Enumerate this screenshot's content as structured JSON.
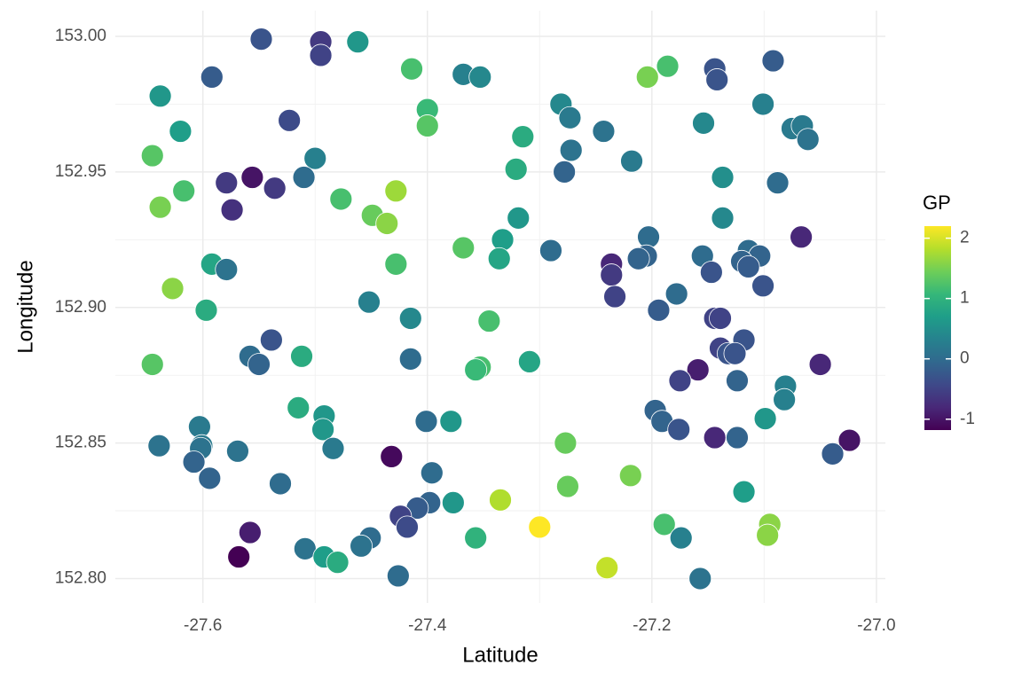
{
  "chart_data": {
    "type": "scatter",
    "x_label": "Latitude",
    "y_label": "Longitude",
    "xlim": [
      -27.678,
      -26.992
    ],
    "ylim": [
      152.791,
      153.0095
    ],
    "xticks": [
      -27.6,
      -27.4,
      -27.2,
      {
        "value": -27,
        "label": "-27.0"
      }
    ],
    "yticks": [
      {
        "value": 152.8,
        "label": "152.80"
      },
      152.85,
      {
        "value": 152.9,
        "label": "152.90"
      },
      152.95,
      {
        "value": 153,
        "label": "153.00"
      }
    ],
    "xminorticks": [
      -27.5,
      -27.3,
      -27.1
    ],
    "yminorticks": [
      152.825,
      152.875,
      152.925,
      152.975
    ],
    "grid": true,
    "colorbar": {
      "title": "GP",
      "lim": [
        -1.18,
        2.2
      ],
      "ticks": [
        -1,
        0,
        1,
        2
      ],
      "colorscale": [
        "#440154",
        "#482878",
        "#3e4989",
        "#31688e",
        "#26828e",
        "#1f9e89",
        "#35b779",
        "#6ece58",
        "#b5de2b",
        "#fde725"
      ]
    },
    "x": [
      -27.548,
      -27.495,
      -27.495,
      -27.462,
      -27.592,
      -27.638,
      -27.62,
      -27.645,
      -27.523,
      -27.5,
      -27.51,
      -27.556,
      -27.579,
      -27.536,
      -27.574,
      -27.617,
      -27.638,
      -27.477,
      -27.428,
      -27.449,
      -27.436,
      -27.414,
      -27.4,
      -27.4,
      -27.368,
      -27.353,
      -27.315,
      -27.321,
      -27.281,
      -27.273,
      -27.272,
      -27.278,
      -27.243,
      -27.218,
      -27.204,
      -27.186,
      -27.144,
      -27.142,
      -27.092,
      -27.101,
      -27.154,
      -27.075,
      -27.066,
      -27.061,
      -27.137,
      -27.088,
      -27.137,
      -27.067,
      -27.319,
      -27.333,
      -27.368,
      -27.336,
      -27.29,
      -27.428,
      -27.236,
      -27.236,
      -27.233,
      -27.203,
      -27.205,
      -27.212,
      -27.155,
      -27.147,
      -27.178,
      -27.194,
      -27.114,
      -27.104,
      -27.12,
      -27.114,
      -27.101,
      -27.592,
      -27.579,
      -27.627,
      -27.597,
      -27.452,
      -27.415,
      -27.345,
      -27.539,
      -27.558,
      -27.55,
      -27.512,
      -27.645,
      -27.415,
      -27.353,
      -27.357,
      -27.309,
      -27.144,
      -27.139,
      -27.139,
      -27.132,
      -27.118,
      -27.126,
      -27.159,
      -27.175,
      -27.124,
      -27.05,
      -27.081,
      -27.082,
      -27.099,
      -27.197,
      -27.191,
      -27.176,
      -27.144,
      -27.124,
      -27.024,
      -27.039,
      -27.515,
      -27.492,
      -27.493,
      -27.484,
      -27.401,
      -27.379,
      -27.603,
      -27.601,
      -27.639,
      -27.602,
      -27.569,
      -27.608,
      -27.594,
      -27.531,
      -27.432,
      -27.277,
      -27.396,
      -27.275,
      -27.219,
      -27.118,
      -27.335,
      -27.398,
      -27.409,
      -27.377,
      -27.424,
      -27.418,
      -27.3,
      -27.189,
      -27.095,
      -27.097,
      -27.174,
      -27.558,
      -27.568,
      -27.509,
      -27.492,
      -27.48,
      -27.451,
      -27.459,
      -27.357,
      -27.426,
      -27.24,
      -27.157
    ],
    "y": [
      152.999,
      152.998,
      152.993,
      152.998,
      152.985,
      152.978,
      152.965,
      152.956,
      152.969,
      152.955,
      152.948,
      152.948,
      152.946,
      152.944,
      152.936,
      152.943,
      152.937,
      152.94,
      152.943,
      152.934,
      152.931,
      152.988,
      152.973,
      152.967,
      152.986,
      152.985,
      152.963,
      152.951,
      152.975,
      152.97,
      152.958,
      152.95,
      152.965,
      152.954,
      152.985,
      152.989,
      152.988,
      152.984,
      152.991,
      152.975,
      152.968,
      152.966,
      152.967,
      152.962,
      152.948,
      152.946,
      152.933,
      152.926,
      152.933,
      152.925,
      152.922,
      152.918,
      152.921,
      152.916,
      152.916,
      152.912,
      152.904,
      152.926,
      152.919,
      152.918,
      152.919,
      152.913,
      152.905,
      152.899,
      152.921,
      152.919,
      152.917,
      152.915,
      152.908,
      152.916,
      152.914,
      152.907,
      152.899,
      152.902,
      152.896,
      152.895,
      152.888,
      152.882,
      152.879,
      152.882,
      152.879,
      152.881,
      152.878,
      152.877,
      152.88,
      152.896,
      152.896,
      152.885,
      152.883,
      152.888,
      152.883,
      152.877,
      152.873,
      152.873,
      152.879,
      152.871,
      152.866,
      152.859,
      152.862,
      152.858,
      152.855,
      152.852,
      152.852,
      152.851,
      152.846,
      152.863,
      152.86,
      152.855,
      152.848,
      152.858,
      152.858,
      152.856,
      152.849,
      152.849,
      152.848,
      152.847,
      152.843,
      152.837,
      152.835,
      152.845,
      152.85,
      152.839,
      152.834,
      152.838,
      152.832,
      152.829,
      152.828,
      152.826,
      152.828,
      152.823,
      152.819,
      152.819,
      152.82,
      152.82,
      152.816,
      152.815,
      152.817,
      152.808,
      152.811,
      152.808,
      152.806,
      152.815,
      152.812,
      152.815,
      152.801,
      152.804,
      152.8
    ],
    "c": [
      -0.3,
      -0.6,
      -0.5,
      0.6,
      -0.2,
      0.6,
      0.7,
      1.3,
      -0.4,
      0.3,
      0,
      -1,
      -0.6,
      -0.6,
      -0.7,
      1.2,
      1.5,
      1.2,
      1.7,
      1.4,
      1.6,
      1.2,
      1.1,
      1.3,
      0.3,
      0.4,
      0.9,
      0.9,
      0.4,
      0.2,
      0.1,
      -0.1,
      0.1,
      0.2,
      1.5,
      1.2,
      -0.3,
      -0.3,
      -0.2,
      0.3,
      0.4,
      0.2,
      0.2,
      0.1,
      0.5,
      0,
      0.4,
      -0.8,
      0.6,
      0.7,
      1.3,
      0.8,
      0,
      1.2,
      -0.8,
      -0.6,
      -0.5,
      0,
      -0.1,
      -0.1,
      0,
      -0.3,
      0,
      -0.2,
      0,
      -0.1,
      -0.1,
      -0.2,
      -0.3,
      0.8,
      0.1,
      1.6,
      0.9,
      0.3,
      0.4,
      1.2,
      -0.3,
      0,
      -0.1,
      0.9,
      1.3,
      0,
      1.2,
      1.1,
      0.8,
      -0.5,
      -0.5,
      -0.5,
      -0.3,
      -0.3,
      -0.3,
      -0.9,
      -0.5,
      -0.1,
      -0.8,
      0.3,
      0.3,
      0.6,
      -0.1,
      -0.1,
      -0.3,
      -0.8,
      -0.1,
      -1,
      -0.2,
      0.9,
      0.6,
      0.6,
      0.2,
      0,
      0.6,
      0.2,
      0.2,
      0.1,
      0.1,
      0.1,
      -0.1,
      -0.1,
      0,
      -1.1,
      1.4,
      0,
      1.4,
      1.5,
      0.7,
      1.8,
      -0.1,
      -0.2,
      0.6,
      -0.5,
      -0.4,
      2.2,
      1.2,
      1.6,
      1.6,
      0.3,
      -0.9,
      -1.2,
      0.1,
      0.7,
      0.9,
      0,
      0.1,
      1,
      0,
      1.9,
      0.1
    ]
  }
}
